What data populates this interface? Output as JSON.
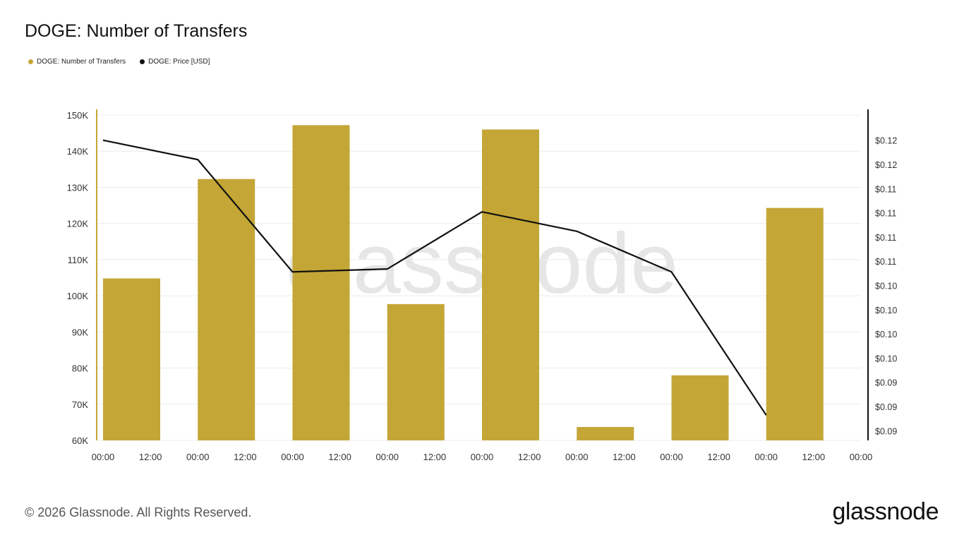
{
  "title": "DOGE: Number of Transfers",
  "legend": [
    {
      "label": "DOGE: Number of Transfers",
      "color": "#C4A636"
    },
    {
      "label": "DOGE: Price [USD]",
      "color": "#111111"
    }
  ],
  "watermark": "glassnode",
  "footer": {
    "copyright": "© 2026 Glassnode. All Rights Reserved.",
    "brand": "glassnode"
  },
  "chart_data": {
    "type": "bar",
    "x_ticks": [
      "00:00",
      "12:00",
      "00:00",
      "12:00",
      "00:00",
      "12:00",
      "00:00",
      "12:00",
      "00:00",
      "12:00",
      "00:00",
      "12:00",
      "00:00",
      "12:00",
      "00:00",
      "12:00",
      "00:00"
    ],
    "ylim": [
      60000,
      150000
    ],
    "y_ticks": [
      "150K",
      "140K",
      "130K",
      "120K",
      "110K",
      "100K",
      "90K",
      "80K",
      "70K",
      "60K"
    ],
    "y_tick_values": [
      150000,
      140000,
      130000,
      120000,
      110000,
      100000,
      90000,
      80000,
      70000,
      60000
    ],
    "y2lim": [
      0.0885,
      0.1221
    ],
    "y2_ticks": [
      "$0.12",
      "$0.12",
      "$0.11",
      "$0.11",
      "$0.11",
      "$0.11",
      "$0.10",
      "$0.10",
      "$0.10",
      "$0.10",
      "$0.09",
      "$0.09",
      "$0.09"
    ],
    "y2_tick_values": [
      0.1195,
      0.117,
      0.1145,
      0.112,
      0.1095,
      0.107,
      0.1045,
      0.102,
      0.0995,
      0.097,
      0.0945,
      0.092,
      0.0895
    ],
    "grid": true,
    "series": [
      {
        "name": "DOGE: Number of Transfers",
        "type": "bar",
        "color": "#C4A636",
        "x_index": [
          0,
          2,
          4,
          6,
          8,
          10,
          12,
          14
        ],
        "values": [
          104800,
          132300,
          147200,
          97700,
          146000,
          63700,
          78000,
          124300
        ]
      },
      {
        "name": "DOGE: Price [USD]",
        "type": "line",
        "color": "#111111",
        "axis": "right",
        "x_index": [
          0,
          2,
          4,
          6,
          8,
          10,
          12,
          14
        ],
        "values": [
          0.1195,
          0.1175,
          0.1059,
          0.1062,
          0.1121,
          0.1101,
          0.1059,
          0.0911
        ]
      }
    ]
  }
}
